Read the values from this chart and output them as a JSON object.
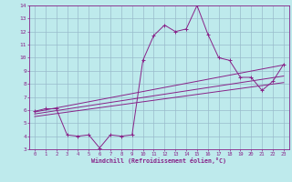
{
  "xlabel": "Windchill (Refroidissement éolien,°C)",
  "xlim": [
    -0.5,
    23.5
  ],
  "ylim": [
    3,
    14
  ],
  "xticks": [
    0,
    1,
    2,
    3,
    4,
    5,
    6,
    7,
    8,
    9,
    10,
    11,
    12,
    13,
    14,
    15,
    16,
    17,
    18,
    19,
    20,
    21,
    22,
    23
  ],
  "yticks": [
    3,
    4,
    5,
    6,
    7,
    8,
    9,
    10,
    11,
    12,
    13,
    14
  ],
  "bg_color": "#beeaec",
  "line_color": "#882288",
  "grid_color": "#99bbcc",
  "line1_x": [
    0,
    1,
    2,
    3,
    4,
    5,
    6,
    7,
    8,
    9,
    10,
    11,
    12,
    13,
    14,
    15,
    16,
    17,
    18,
    19,
    20,
    21,
    22,
    23
  ],
  "line1_y": [
    5.9,
    6.1,
    6.1,
    4.1,
    4.0,
    4.1,
    3.1,
    4.1,
    4.0,
    4.1,
    9.8,
    11.7,
    12.5,
    12.0,
    12.2,
    14.0,
    11.8,
    10.0,
    9.8,
    8.5,
    8.5,
    7.5,
    8.2,
    9.5
  ],
  "line2_x": [
    0,
    23
  ],
  "line2_y": [
    5.85,
    9.45
  ],
  "line3_x": [
    0,
    23
  ],
  "line3_y": [
    5.7,
    8.6
  ],
  "line4_x": [
    0,
    23
  ],
  "line4_y": [
    5.5,
    8.1
  ]
}
